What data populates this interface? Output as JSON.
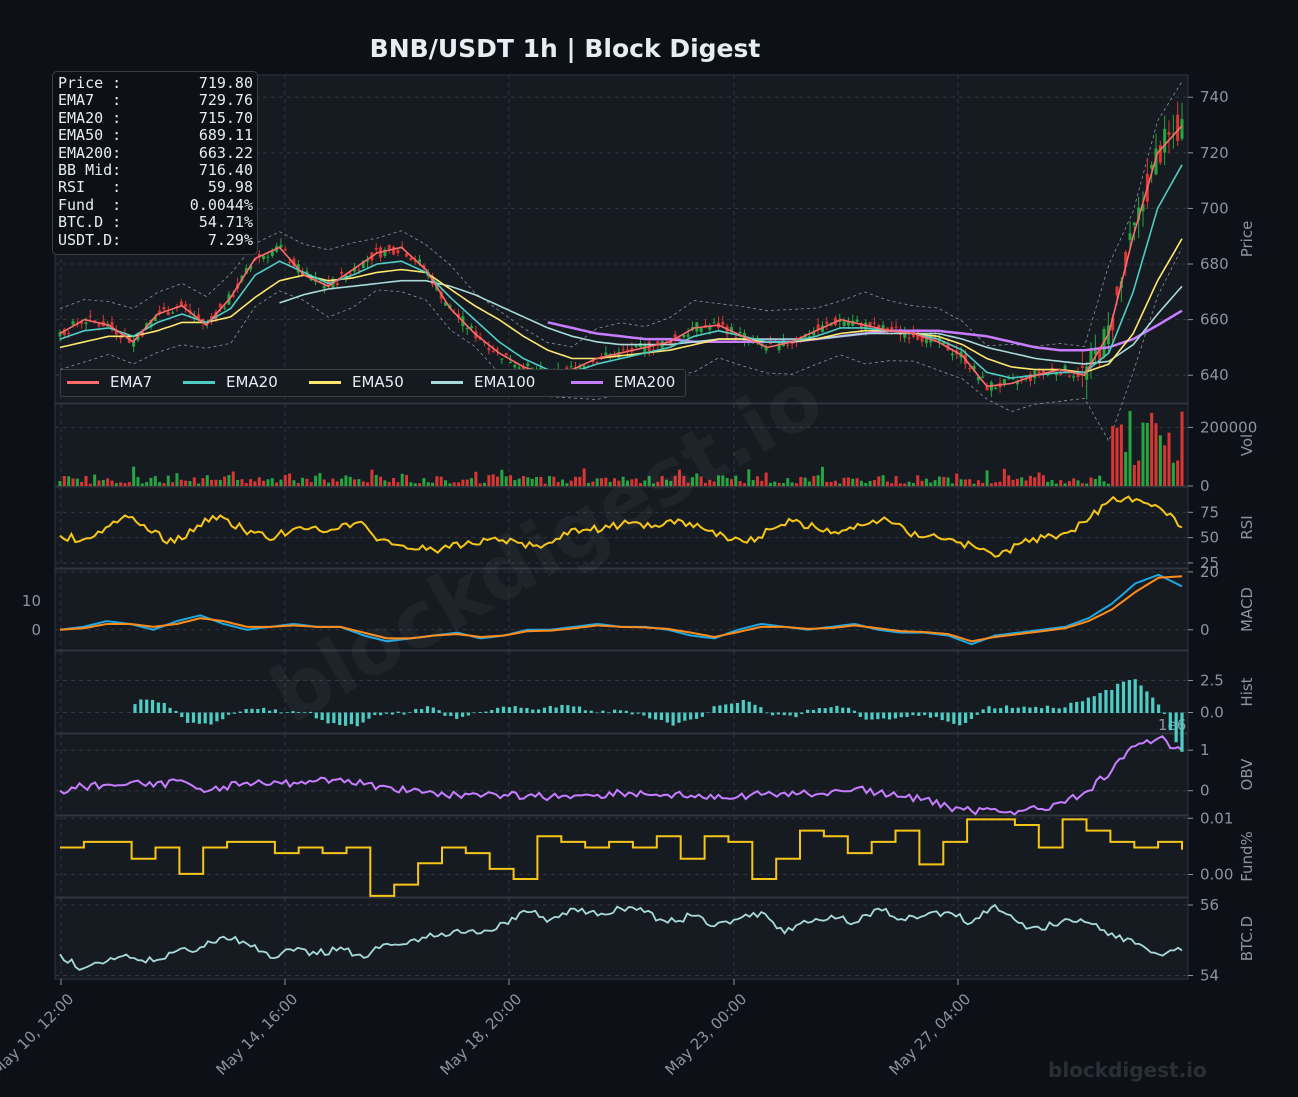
{
  "title": "BNB/USDT  1h  |  Block Digest",
  "info": [
    {
      "label": "Price :",
      "value": "719.80"
    },
    {
      "label": "EMA7  :",
      "value": "729.76"
    },
    {
      "label": "EMA20 :",
      "value": "715.70"
    },
    {
      "label": "EMA50 :",
      "value": "689.11"
    },
    {
      "label": "EMA200:",
      "value": "663.22"
    },
    {
      "label": "BB Mid:",
      "value": "716.40"
    },
    {
      "label": "RSI   :",
      "value": "59.98"
    },
    {
      "label": "Fund  :",
      "value": "0.0044%"
    },
    {
      "label": "BTC.D :",
      "value": "54.71%"
    },
    {
      "label": "USDT.D:",
      "value": "7.29%"
    }
  ],
  "legend": [
    {
      "name": "EMA7",
      "color": "#ff6b6b"
    },
    {
      "name": "EMA20",
      "color": "#4ecdc4"
    },
    {
      "name": "EMA50",
      "color": "#ffe66d"
    },
    {
      "name": "EMA100",
      "color": "#a8dadc"
    },
    {
      "name": "EMA200",
      "color": "#c77dff"
    }
  ],
  "watermark": "blockdigest.io",
  "diagonal_watermark": "blockdigest.io",
  "chart_data": {
    "type": "line",
    "x_ticks": [
      "May 10, 12:00",
      "May 14, 16:00",
      "May 18, 20:00",
      "May 23, 00:00",
      "May 27, 04:00"
    ],
    "panels": [
      {
        "id": "price",
        "ylabel": "Price",
        "ylim": [
          630,
          748
        ],
        "ticks": [
          640,
          660,
          680,
          700,
          720,
          740
        ],
        "series": [
          {
            "name": "EMA7",
            "color": "#ff6b6b",
            "values": [
              655,
              660,
              658,
              652,
              662,
              665,
              658,
              668,
              682,
              686,
              676,
              672,
              678,
              684,
              686,
              678,
              664,
              655,
              648,
              643,
              640,
              642,
              646,
              648,
              650,
              652,
              657,
              658,
              654,
              650,
              652,
              656,
              660,
              658,
              656,
              655,
              652,
              647,
              636,
              637,
              640,
              642,
              640,
              655,
              690,
              720,
              729.76
            ]
          },
          {
            "name": "EMA20",
            "color": "#4ecdc4",
            "values": [
              653,
              656,
              657,
              654,
              659,
              662,
              659,
              664,
              676,
              681,
              677,
              673,
              676,
              680,
              681,
              677,
              668,
              660,
              652,
              646,
              642,
              641,
              644,
              646,
              648,
              650,
              654,
              656,
              654,
              652,
              652,
              654,
              657,
              657,
              656,
              655,
              653,
              649,
              641,
              639,
              640,
              641,
              641,
              648,
              670,
              700,
              715.7
            ]
          },
          {
            "name": "EMA50",
            "color": "#ffe66d",
            "values": [
              650,
              652,
              654,
              654,
              656,
              659,
              659,
              661,
              668,
              674,
              676,
              674,
              675,
              677,
              678,
              677,
              671,
              665,
              660,
              654,
              649,
              646,
              646,
              647,
              648,
              649,
              651,
              653,
              653,
              652,
              652,
              653,
              655,
              656,
              656,
              655,
              654,
              651,
              646,
              643,
              642,
              642,
              641,
              644,
              655,
              674,
              689.11
            ]
          },
          {
            "name": "EMA100",
            "color": "#a8dadc",
            "values": [
              null,
              null,
              null,
              null,
              null,
              null,
              null,
              null,
              null,
              666,
              669,
              671,
              672,
              673,
              674,
              674,
              672,
              669,
              665,
              661,
              657,
              654,
              652,
              651,
              651,
              651,
              652,
              653,
              653,
              653,
              653,
              653,
              654,
              655,
              655,
              655,
              655,
              653,
              650,
              648,
              646,
              645,
              644,
              645,
              651,
              662,
              672
            ]
          },
          {
            "name": "EMA200",
            "color": "#c77dff",
            "values": [
              null,
              null,
              null,
              null,
              null,
              null,
              null,
              null,
              null,
              null,
              null,
              null,
              null,
              null,
              null,
              null,
              null,
              null,
              null,
              null,
              659,
              657,
              655,
              654,
              653,
              653,
              652,
              652,
              652,
              652,
              652,
              653,
              654,
              655,
              656,
              656,
              656,
              655,
              654,
              652,
              650,
              649,
              649,
              650,
              653,
              658,
              663.22
            ]
          }
        ]
      },
      {
        "id": "vol",
        "ylabel": "Vol",
        "ylim": [
          0,
          280000
        ],
        "ticks": [
          0,
          200000
        ],
        "tick_labels": [
          "0",
          "200000"
        ]
      },
      {
        "id": "rsi",
        "ylabel": "RSI",
        "ylim": [
          20,
          100
        ],
        "ticks": [
          25,
          50,
          75
        ],
        "series": [
          {
            "name": "RSI",
            "color": "#f5c518",
            "values": [
              52,
              48,
              60,
              70,
              55,
              45,
              62,
              72,
              58,
              50,
              55,
              60,
              58,
              65,
              48,
              42,
              38,
              40,
              44,
              50,
              45,
              40,
              55,
              58,
              60,
              65,
              62,
              68,
              60,
              52,
              45,
              58,
              66,
              60,
              54,
              62,
              70,
              55,
              52,
              48,
              40,
              32,
              45,
              50,
              55,
              70,
              90,
              88,
              80,
              59.98
            ]
          }
        ]
      },
      {
        "id": "macd",
        "ylabel": "MACD",
        "ylim": [
          -7,
          21
        ],
        "ticks": [
          0,
          20
        ],
        "left_ticks": [
          0,
          10
        ],
        "series": [
          {
            "name": "MACD",
            "color": "#1ea7e1",
            "values": [
              0,
              1,
              3,
              2,
              0,
              3,
              5,
              2,
              0,
              1,
              2,
              1,
              1,
              -2,
              -4,
              -3,
              -2,
              -1,
              -3,
              -2,
              0,
              0,
              1,
              2,
              1,
              1,
              0,
              -2,
              -3,
              0,
              2,
              1,
              0,
              1,
              2,
              0,
              -1,
              -1,
              -2,
              -5,
              -2,
              -1,
              0,
              1,
              4,
              9,
              16,
              19,
              15
            ]
          },
          {
            "name": "Signal",
            "color": "#ff8c1a",
            "values": [
              0,
              0.5,
              2,
              2,
              1,
              2,
              4,
              3,
              1,
              1,
              1.5,
              1,
              1,
              -1,
              -3,
              -3,
              -2,
              -1.5,
              -2.5,
              -2,
              -0.5,
              -0.3,
              0.5,
              1.5,
              1,
              0.8,
              0.3,
              -1,
              -2.5,
              -0.8,
              1,
              1,
              0.3,
              0.6,
              1.5,
              0.5,
              -0.5,
              -0.8,
              -1.5,
              -4,
              -2.5,
              -1.5,
              -0.5,
              0.5,
              3,
              7,
              13,
              18,
              18.5
            ]
          }
        ]
      },
      {
        "id": "hist",
        "ylabel": "Hist",
        "ylim": [
          -1.6,
          4.8
        ],
        "ticks": [
          0.0,
          2.5
        ],
        "tick_labels": [
          "0.0",
          "2.5"
        ]
      },
      {
        "id": "obv",
        "ylabel": "OBV",
        "ylim": [
          -0.6,
          1.4
        ],
        "ticks": [
          0,
          1
        ],
        "offset_label": "1e6",
        "series": [
          {
            "name": "OBV",
            "color": "#c77dff",
            "values": [
              0,
              0.1,
              0.15,
              0.2,
              0.1,
              0.25,
              0.05,
              0.1,
              0.2,
              0.15,
              0.2,
              0.25,
              0.3,
              0.15,
              0.1,
              0,
              -0.05,
              -0.1,
              -0.15,
              -0.1,
              -0.12,
              -0.15,
              -0.12,
              -0.1,
              -0.05,
              -0.08,
              -0.1,
              -0.12,
              -0.2,
              -0.15,
              -0.1,
              -0.05,
              -0.08,
              -0.02,
              0.05,
              -0.05,
              -0.15,
              -0.2,
              -0.4,
              -0.5,
              -0.45,
              -0.5,
              -0.45,
              -0.3,
              0,
              0.5,
              1.1,
              1.3,
              1.0
            ]
          }
        ]
      },
      {
        "id": "fund",
        "ylabel": "Fund%",
        "ylim": [
          -0.004,
          0.0104
        ],
        "ticks": [
          0.0,
          0.01
        ],
        "tick_labels": [
          "0.00",
          "0.01"
        ],
        "series": [
          {
            "name": "Fund",
            "color": "#f5c518",
            "values": [
              0.0048,
              0.0058,
              0.0058,
              0.0028,
              0.0048,
              0.0001,
              0.0048,
              0.0058,
              0.0058,
              0.0038,
              0.0048,
              0.0038,
              0.0048,
              -0.0038,
              -0.0018,
              0.002,
              0.0048,
              0.0038,
              0.001,
              -0.0008,
              0.0068,
              0.0058,
              0.0048,
              0.0058,
              0.0048,
              0.0068,
              0.0028,
              0.0068,
              0.0058,
              -0.0008,
              0.0028,
              0.0078,
              0.0068,
              0.0038,
              0.0058,
              0.0078,
              0.0018,
              0.0058,
              0.0098,
              0.0098,
              0.0088,
              0.0048,
              0.0098,
              0.0078,
              0.0058,
              0.0048,
              0.0058,
              0.0044
            ]
          }
        ]
      },
      {
        "id": "btcd",
        "ylabel": "BTC.D",
        "ylim": [
          53.9,
          56.2
        ],
        "ticks": [
          54,
          56
        ],
        "series": [
          {
            "name": "BTC.D",
            "color": "#a8dadc",
            "values": [
              54.6,
              54.2,
              54.4,
              54.5,
              54.4,
              54.7,
              54.8,
              55.1,
              54.9,
              54.5,
              54.7,
              54.6,
              54.8,
              54.5,
              54.9,
              55.0,
              55.1,
              55.3,
              55.2,
              55.5,
              55.8,
              55.6,
              55.9,
              55.7,
              55.9,
              55.8,
              55.5,
              55.7,
              55.4,
              55.6,
              55.8,
              55.2,
              55.5,
              55.7,
              55.5,
              55.9,
              55.6,
              55.7,
              55.8,
              55.5,
              56.0,
              55.5,
              55.3,
              55.6,
              55.5,
              55.2,
              54.9,
              54.6,
              54.71
            ]
          }
        ]
      }
    ]
  }
}
